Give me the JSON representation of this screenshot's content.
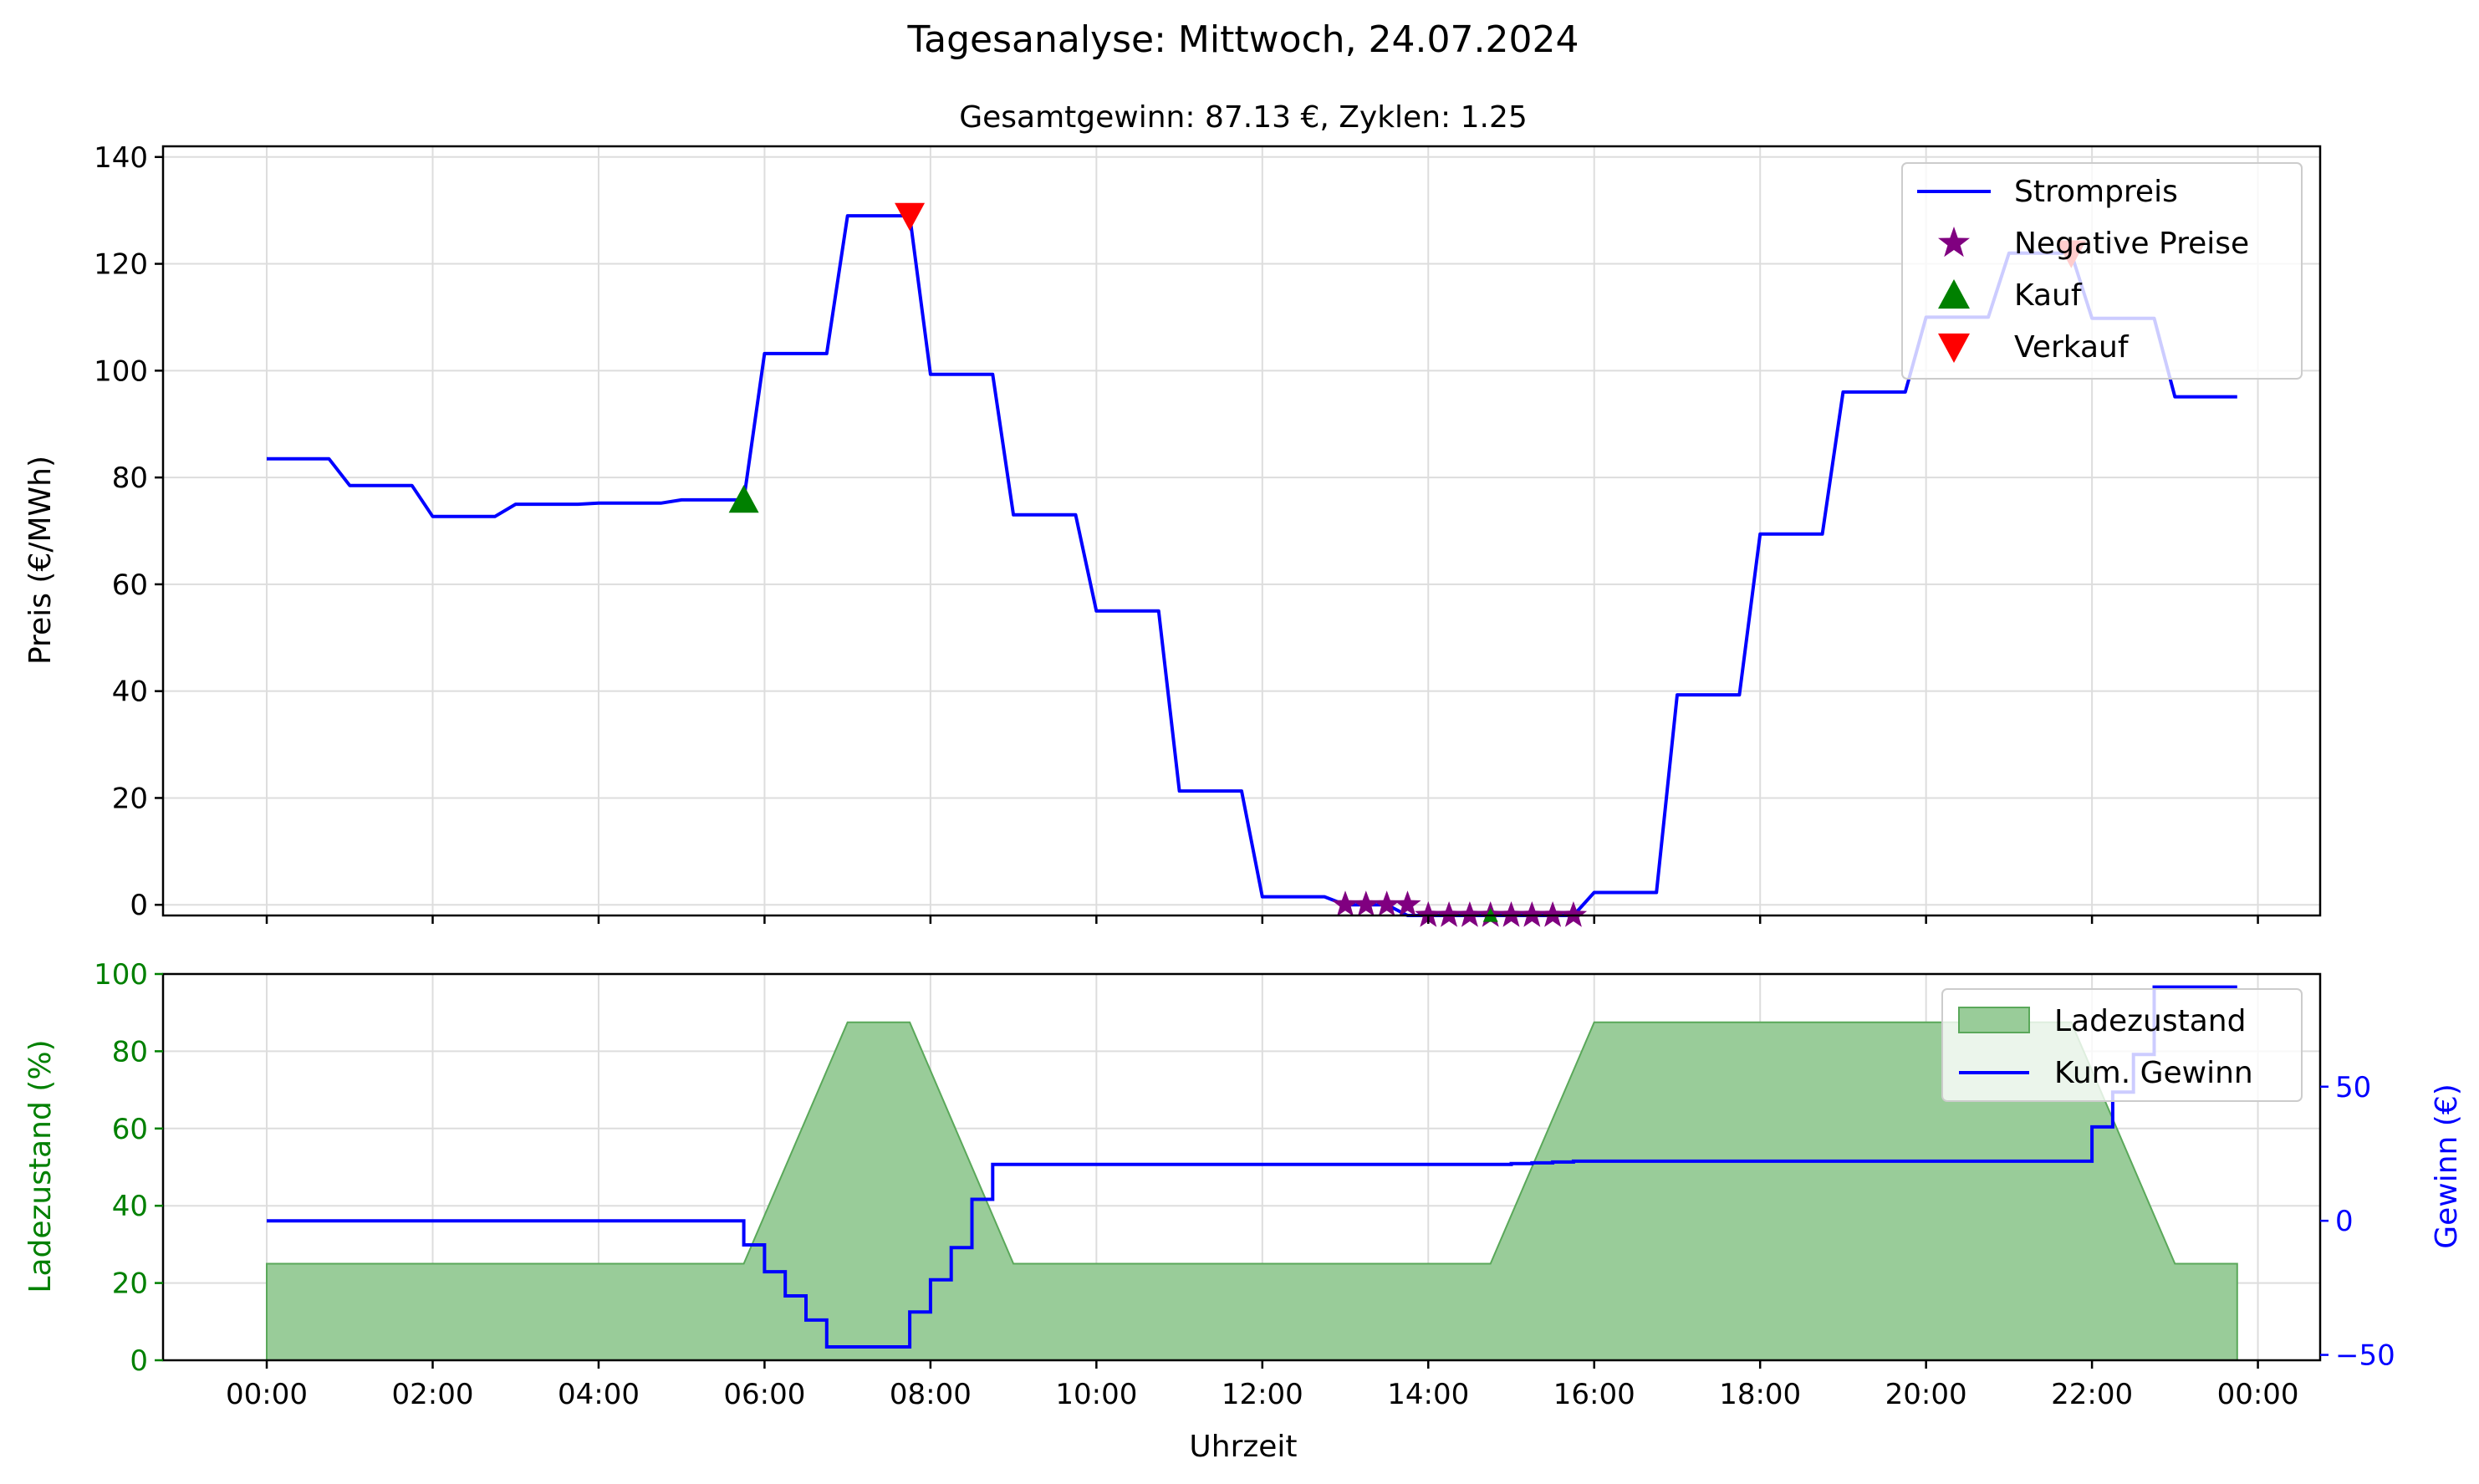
{
  "figure": {
    "title": "Tagesanalyse: Mittwoch, 24.07.2024",
    "xlabel": "Uhrzeit",
    "x_ticks": [
      "00:00",
      "02:00",
      "04:00",
      "06:00",
      "08:00",
      "10:00",
      "12:00",
      "14:00",
      "16:00",
      "18:00",
      "20:00",
      "22:00",
      "00:00"
    ]
  },
  "chart_data": [
    {
      "type": "line",
      "subtitle": "Gesamtgewinn: 87.13 €, Zyklen: 1.25",
      "ylabel": "Preis (€/MWh)",
      "xlim_hours": [
        -1.25,
        24.75
      ],
      "ylim": [
        -2,
        142
      ],
      "y_ticks": [
        0,
        20,
        40,
        60,
        80,
        100,
        120,
        140
      ],
      "grid": true,
      "legend_position": "top-right",
      "legend": [
        "Strompreis",
        "Negative Preise",
        "Kauf",
        "Verkauf"
      ],
      "colors": {
        "price": "#0000ff",
        "negative": "#800080",
        "buy": "#008000",
        "sell": "#ff0000"
      },
      "price_series": {
        "name": "Strompreis",
        "x_hours": [
          0,
          0.75,
          1,
          1.75,
          2,
          2.75,
          3,
          3.75,
          4,
          4.75,
          5,
          5.75,
          6,
          6.75,
          7,
          7.75,
          8,
          8.75,
          9,
          9.75,
          10,
          10.75,
          11,
          11.75,
          12,
          12.75,
          13,
          13.25,
          13.5,
          13.75,
          14,
          14.25,
          14.5,
          14.75,
          15,
          15.25,
          15.5,
          15.75,
          16,
          16.75,
          17,
          17.75,
          18,
          18.75,
          19,
          19.75,
          20,
          20.75,
          21,
          21.75,
          22,
          22.75,
          23,
          23.75
        ],
        "values": [
          83.5,
          83.5,
          78.5,
          78.5,
          72.7,
          72.7,
          75,
          75,
          75.2,
          75.2,
          75.8,
          75.8,
          103.2,
          103.2,
          129,
          129,
          99.3,
          99.3,
          73,
          73,
          55,
          55,
          21.3,
          21.3,
          1.5,
          1.5,
          0,
          0,
          0,
          -2,
          -2,
          -2,
          -2,
          -2,
          -2,
          -2,
          -2,
          -2,
          2.3,
          2.3,
          39.3,
          39.3,
          69.4,
          69.4,
          96,
          96,
          110,
          110,
          122,
          122,
          109.8,
          109.8,
          95.1,
          95.1
        ]
      },
      "negative_prices": {
        "name": "Negative Preise",
        "x_hours": [
          13,
          13.25,
          13.5,
          13.75,
          14,
          14.25,
          14.5,
          14.75,
          15,
          15.25,
          15.5,
          15.75
        ],
        "values": [
          0,
          0,
          0,
          0,
          -2,
          -2,
          -2,
          -2,
          -2,
          -2,
          -2,
          -2
        ]
      },
      "buy_points": {
        "name": "Kauf",
        "x_hours": [
          5.75,
          14.75
        ],
        "values": [
          75.8,
          -2
        ]
      },
      "sell_points": {
        "name": "Verkauf",
        "x_hours": [
          7.75,
          21.75
        ],
        "values": [
          129,
          122
        ]
      }
    },
    {
      "type": "area",
      "ylabel_left": "Ladezustand (%)",
      "ylabel_right": "Gewinn (€)",
      "xlim_hours": [
        -1.25,
        24.75
      ],
      "ylim_left": [
        0,
        100
      ],
      "y_ticks_left": [
        0,
        20,
        40,
        60,
        80,
        100
      ],
      "ylim_right": [
        -52,
        92
      ],
      "y_ticks_right": [
        -50,
        0,
        50
      ],
      "grid": true,
      "legend_position": "top-right",
      "legend": [
        "Ladezustand",
        "Kum. Gewinn"
      ],
      "colors": {
        "soc_fill": "#99cc99",
        "soc_edge": "#5aa85a",
        "profit": "#0000ff",
        "left_axis": "#008000",
        "right_axis": "#0000ff"
      },
      "soc_series": {
        "name": "Ladezustand",
        "x_hours": [
          0,
          5.75,
          7,
          7.75,
          9,
          14.75,
          16,
          21.75,
          23,
          23.75
        ],
        "values": [
          25,
          25,
          87.5,
          87.5,
          25,
          25,
          87.5,
          87.5,
          25,
          25
        ]
      },
      "profit_series": {
        "name": "Kum. Gewinn",
        "x_hours": [
          0,
          5.75,
          5.75,
          6,
          6.25,
          6.5,
          6.75,
          7,
          7.25,
          7.5,
          7.75,
          8,
          8.25,
          8.5,
          8.75,
          14.75,
          15,
          15.25,
          15.5,
          15.75,
          21.75,
          22,
          22.25,
          22.5,
          22.75,
          23.75
        ],
        "values": [
          0,
          0,
          -9,
          -19,
          -28,
          -37,
          -47,
          -47,
          -47,
          -47,
          -34,
          -22,
          -10,
          8,
          21,
          21,
          21.3,
          21.6,
          21.9,
          22.2,
          22.2,
          35,
          48,
          62,
          87.13,
          87.13
        ]
      }
    }
  ]
}
